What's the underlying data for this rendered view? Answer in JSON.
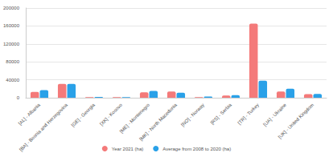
{
  "chart_data": {
    "type": "bar",
    "categories": [
      "[AL] - Albania",
      "[BA] - Bosnia and Herzegovina",
      "[GE] - Georgia",
      "[XK] - Kosovo",
      "[ME] - Montenegro",
      "[MK] - North Macedonia",
      "[NO] - Norway",
      "[RS] - Serbia",
      "[TR] - Turkey",
      "[UA] - Ukraine",
      "[UK] - United Kingdom"
    ],
    "series": [
      {
        "name": "Year 2021 (ha)",
        "color": "#f47a7a",
        "values": [
          13000,
          31000,
          1500,
          1500,
          12000,
          14000,
          1500,
          5000,
          165000,
          14000,
          8000
        ]
      },
      {
        "name": "Average from 2008 to 2020 (ha)",
        "color": "#2aa1e8",
        "values": [
          17000,
          31000,
          2000,
          1500,
          15000,
          11000,
          2500,
          6000,
          38000,
          20000,
          8500
        ]
      }
    ],
    "ylim": [
      0,
      200000
    ],
    "yticks": [
      0,
      40000,
      80000,
      120000,
      160000,
      200000
    ],
    "grid": true,
    "legend": "bottom"
  }
}
